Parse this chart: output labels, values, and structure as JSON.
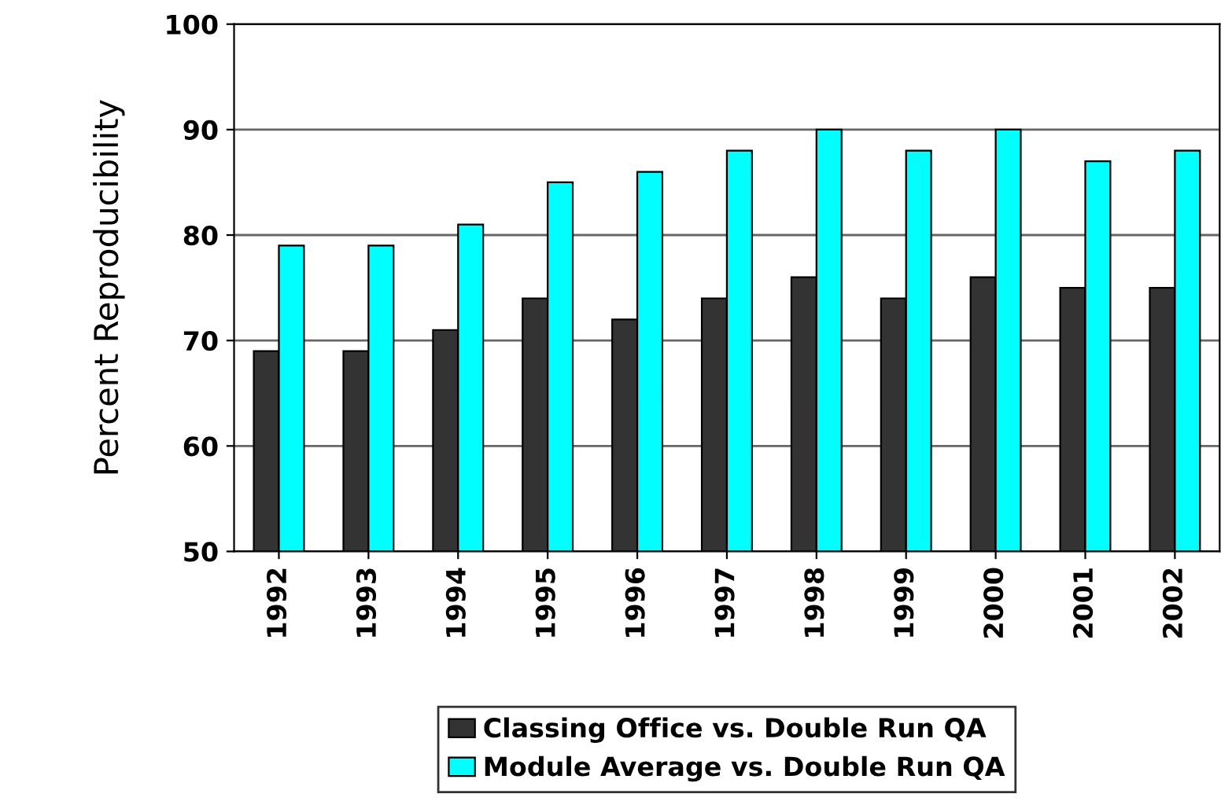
{
  "chart_data": {
    "type": "bar",
    "ylabel": "Percent Reproducibility",
    "categories": [
      "1992",
      "1993",
      "1994",
      "1995",
      "1996",
      "1997",
      "1998",
      "1999",
      "2000",
      "2001",
      "2002"
    ],
    "series": [
      {
        "name": "Classing Office vs. Double Run QA",
        "color": "#333333",
        "values": [
          69,
          69,
          71,
          74,
          72,
          74,
          76,
          74,
          76,
          75,
          75
        ]
      },
      {
        "name": "Module Average vs. Double Run QA",
        "color": "#00ffff",
        "values": [
          79,
          79,
          81,
          85,
          86,
          88,
          90,
          88,
          90,
          87,
          88
        ]
      }
    ],
    "ylim": [
      50,
      100
    ],
    "yticks": [
      50,
      60,
      70,
      80,
      90,
      100
    ],
    "grid": "y",
    "legend": "bottom"
  }
}
